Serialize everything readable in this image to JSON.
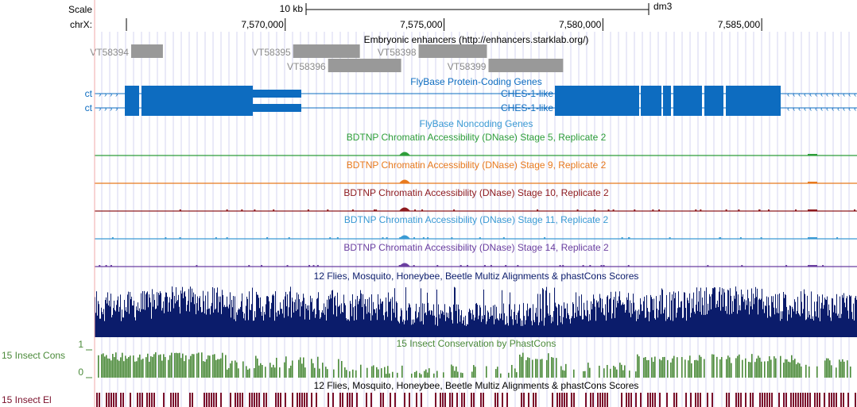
{
  "ruler": {
    "scale_label": "Scale",
    "scale_bar_text": "10 kb",
    "assembly": "dm3",
    "chrom_label": "chrX:",
    "ticks": [
      {
        "label": "7,570,000",
        "pos": 7570000
      },
      {
        "label": "7,575,000",
        "pos": 7575000
      },
      {
        "label": "7,580,000",
        "pos": 7580000
      },
      {
        "label": "7,585,000",
        "pos": 7585000
      }
    ]
  },
  "enhancers": {
    "title": "Embryonic enhancers (http://enhancers.starklab.org/)",
    "items": [
      {
        "name": "VT58394",
        "start": 7565150,
        "end": 7566150,
        "row": 0
      },
      {
        "name": "VT58395",
        "start": 7570250,
        "end": 7572350,
        "row": 0
      },
      {
        "name": "VT58398",
        "start": 7574200,
        "end": 7576350,
        "row": 0
      },
      {
        "name": "VT58396",
        "start": 7571350,
        "end": 7573650,
        "row": 1
      },
      {
        "name": "VT58399",
        "start": 7576400,
        "end": 7578750,
        "row": 1
      }
    ]
  },
  "genes": {
    "title": "FlyBase Protein-Coding Genes",
    "rows": [
      {
        "left_label": "ct",
        "right_label": "CHES-1-like"
      },
      {
        "left_label": "ct",
        "right_label": "CHES-1-like"
      }
    ]
  },
  "noncoding": {
    "title": "FlyBase Noncoding Genes"
  },
  "dnase_tracks": [
    {
      "title": "BDTNP Chromatin Accessibility (DNase) Stage 5, Replicate 2",
      "color": "#2e9e3a"
    },
    {
      "title": "BDTNP Chromatin Accessibility (DNase) Stage 9, Replicate 2",
      "color": "#e87a1e"
    },
    {
      "title": "BDTNP Chromatin Accessibility (DNase) Stage 10, Replicate 2",
      "color": "#8e1a1e"
    },
    {
      "title": "BDTNP Chromatin Accessibility (DNase) Stage 11, Replicate 2",
      "color": "#3a9ad4"
    },
    {
      "title": "BDTNP Chromatin Accessibility (DNase) Stage 14, Replicate 2",
      "color": "#6b3fa0"
    }
  ],
  "multiz": {
    "title": "12 Flies, Mosquito, Honeybee, Beetle Multiz Alignments & phastCons Scores",
    "color": "#0b1c6b"
  },
  "phastcons": {
    "title": "15 Insect Conservation by PhastCons",
    "side_label": "15 Insect Cons",
    "ymax": "1",
    "ymin": "0",
    "color": "#4b8a3a"
  },
  "elements": {
    "title": "12 Flies, Mosquito, Honeybee, Beetle Multiz Alignments & phastCons Scores",
    "side_label": "15 Insect El",
    "color": "#7a0f2a"
  },
  "colors": {
    "gene": "#0d6cc0",
    "enhancer": "#999999",
    "enhancer_text": "#8a8a8a",
    "grid": "#d4d4f0",
    "red_line": "#f2aaaa"
  }
}
